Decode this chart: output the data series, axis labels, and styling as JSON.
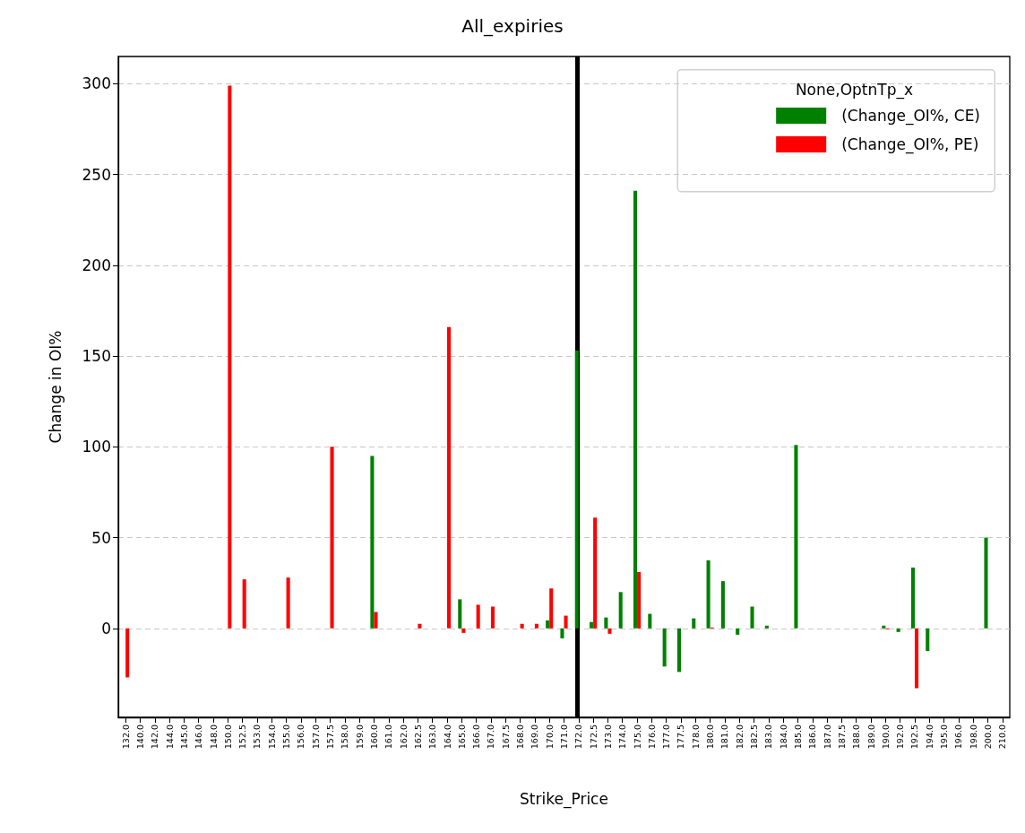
{
  "chart_data": {
    "type": "bar",
    "title": "All_expiries",
    "xlabel": "Strike_Price",
    "ylabel": "Change in OI%",
    "legend_title": "None,OptnTp_x",
    "categories": [
      "132.0",
      "140.0",
      "142.0",
      "144.0",
      "145.0",
      "146.0",
      "148.0",
      "150.0",
      "152.5",
      "153.0",
      "154.0",
      "155.0",
      "156.0",
      "157.0",
      "157.5",
      "158.0",
      "159.0",
      "160.0",
      "161.0",
      "162.0",
      "162.5",
      "163.0",
      "164.0",
      "165.0",
      "166.0",
      "167.0",
      "167.5",
      "168.0",
      "169.0",
      "170.0",
      "171.0",
      "172.0",
      "172.5",
      "173.0",
      "174.0",
      "175.0",
      "176.0",
      "177.0",
      "177.5",
      "178.0",
      "180.0",
      "181.0",
      "182.0",
      "182.5",
      "183.0",
      "184.0",
      "185.0",
      "186.0",
      "187.0",
      "187.5",
      "188.0",
      "189.0",
      "190.0",
      "192.0",
      "192.5",
      "194.0",
      "195.0",
      "196.0",
      "198.0",
      "200.0",
      "210.0"
    ],
    "series": [
      {
        "name": "(Change_OI%, CE)",
        "color": "#008000",
        "values": [
          null,
          null,
          null,
          null,
          null,
          null,
          null,
          null,
          null,
          null,
          null,
          null,
          null,
          null,
          null,
          null,
          null,
          95,
          null,
          null,
          null,
          null,
          null,
          16,
          null,
          null,
          null,
          null,
          null,
          4.4,
          -5.5,
          153,
          3.5,
          6,
          20,
          241,
          8,
          -21,
          -24,
          5.5,
          37.5,
          26,
          -3.5,
          12,
          1.5,
          null,
          101,
          null,
          null,
          null,
          null,
          null,
          1.5,
          -2,
          33.5,
          -12.5,
          null,
          null,
          null,
          50,
          null
        ]
      },
      {
        "name": "(Change_OI%, PE)",
        "color": "#ff0000",
        "values": [
          -27,
          null,
          null,
          null,
          null,
          null,
          null,
          299,
          27,
          null,
          null,
          28,
          null,
          null,
          100,
          null,
          null,
          9,
          null,
          null,
          2.5,
          null,
          166,
          -2.5,
          13,
          12,
          null,
          2.5,
          2.5,
          22,
          7,
          null,
          61,
          -3,
          null,
          31,
          null,
          null,
          null,
          null,
          0.5,
          null,
          null,
          null,
          null,
          null,
          null,
          null,
          null,
          null,
          null,
          null,
          -0.5,
          null,
          -33,
          null,
          null,
          null,
          null,
          null,
          null
        ]
      }
    ],
    "ylim": [
      -49,
      315
    ],
    "yticks": [
      0,
      50,
      100,
      150,
      200,
      250,
      300
    ],
    "grid": "y",
    "legend": "top right",
    "ref_lines": [
      {
        "axis": "x",
        "value": "172.0",
        "color": "#000000"
      }
    ]
  }
}
